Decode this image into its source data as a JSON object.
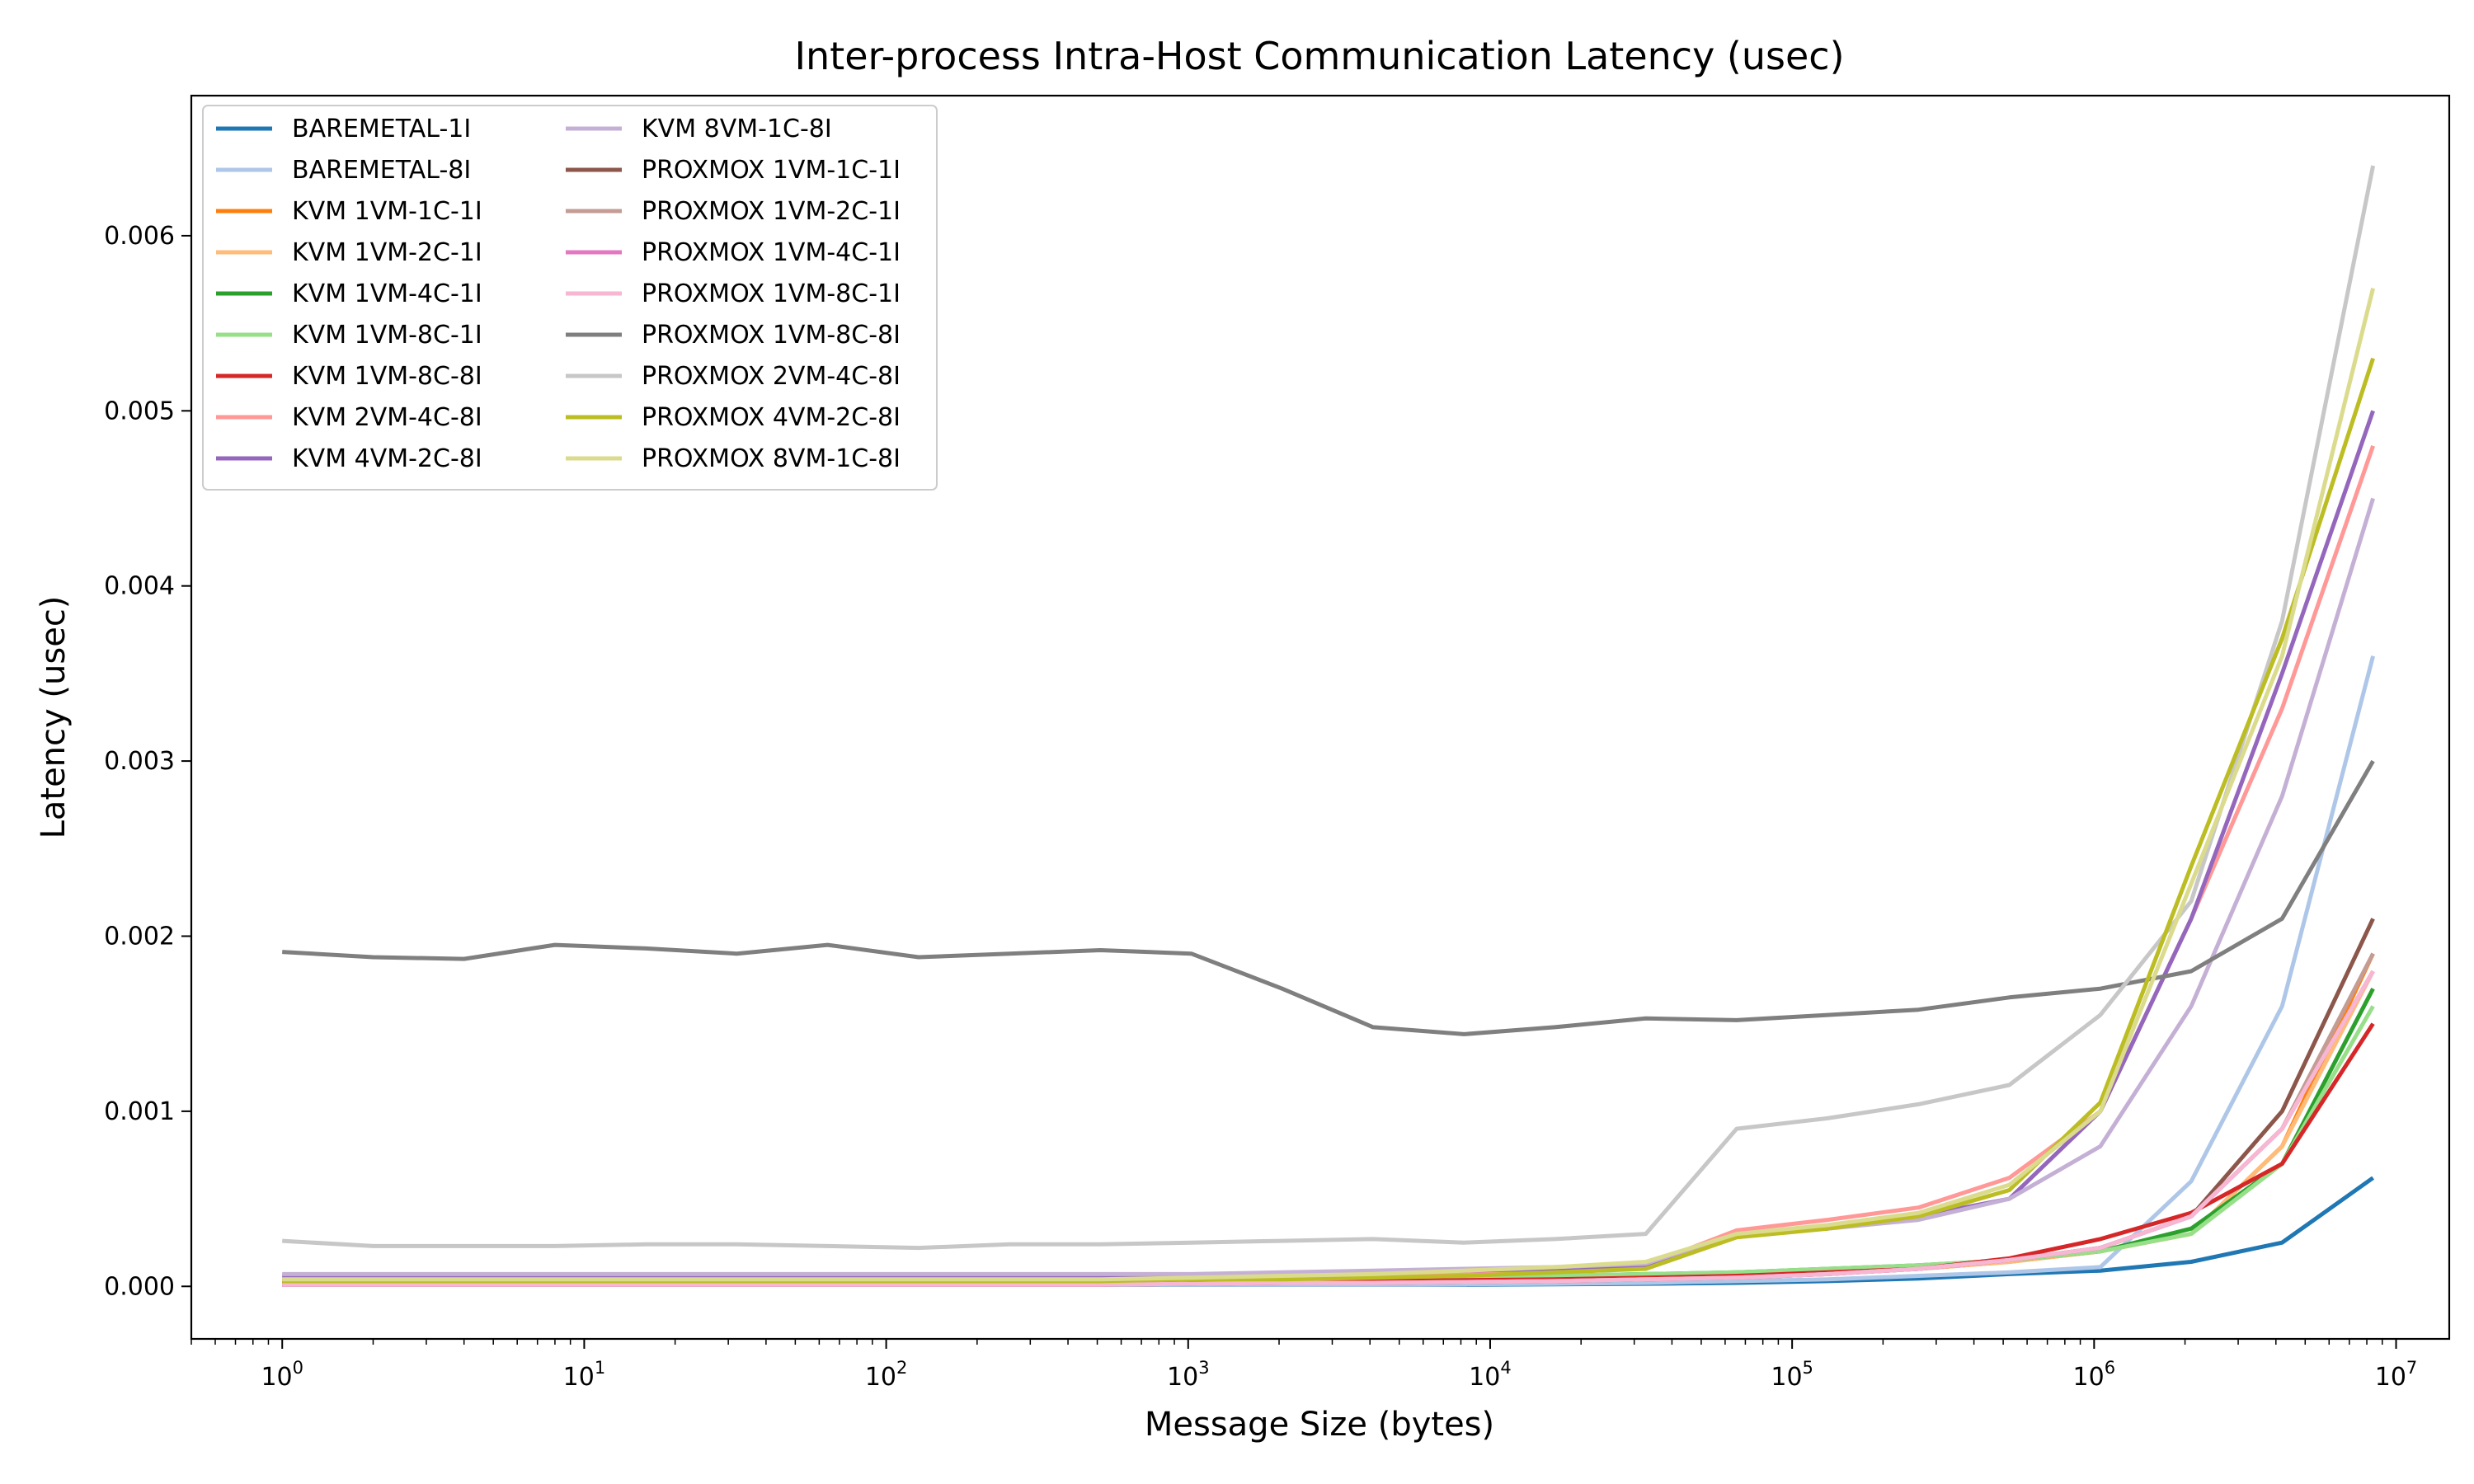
{
  "chart_data": {
    "type": "line",
    "title": "Inter-process Intra-Host Communication Latency (usec)",
    "xlabel": "Message Size (bytes)",
    "ylabel": "Latency (usec)",
    "x_scale": "log",
    "xlim": [
      0.5,
      15000000
    ],
    "ylim": [
      -0.0003,
      0.0068
    ],
    "x_ticks": [
      {
        "exp": "0",
        "value": 1
      },
      {
        "exp": "1",
        "value": 10
      },
      {
        "exp": "2",
        "value": 100
      },
      {
        "exp": "3",
        "value": 1000
      },
      {
        "exp": "4",
        "value": 10000
      },
      {
        "exp": "5",
        "value": 100000
      },
      {
        "exp": "6",
        "value": 1000000
      },
      {
        "exp": "7",
        "value": 10000000
      }
    ],
    "y_ticks": [
      {
        "label": "0.000",
        "value": 0.0
      },
      {
        "label": "0.001",
        "value": 0.001
      },
      {
        "label": "0.002",
        "value": 0.002
      },
      {
        "label": "0.003",
        "value": 0.003
      },
      {
        "label": "0.004",
        "value": 0.004
      },
      {
        "label": "0.005",
        "value": 0.005
      },
      {
        "label": "0.006",
        "value": 0.006
      }
    ],
    "x_tick_base": "10",
    "grid": false,
    "legend_position": "top-left",
    "legend_columns": 2,
    "x": [
      1,
      2,
      4,
      8,
      16,
      32,
      64,
      128,
      256,
      512,
      1024,
      2048,
      4096,
      8192,
      16384,
      32768,
      65536,
      131072,
      262144,
      524288,
      1048576,
      2097152,
      4194304,
      8388608
    ],
    "series": [
      {
        "name": "BAREMETAL-1I",
        "color": "#1f77b4",
        "values": [
          1e-05,
          1e-05,
          1e-05,
          1e-05,
          1e-05,
          1e-05,
          1e-05,
          1e-05,
          1e-05,
          1e-05,
          1e-05,
          1e-05,
          1e-05,
          1e-05,
          1.2e-05,
          1.5e-05,
          2e-05,
          3e-05,
          4.5e-05,
          7e-05,
          9e-05,
          0.00014,
          0.00025,
          0.00062
        ]
      },
      {
        "name": "BAREMETAL-8I",
        "color": "#aec7e8",
        "values": [
          1e-05,
          1e-05,
          1e-05,
          1e-05,
          1e-05,
          1e-05,
          1e-05,
          1e-05,
          1e-05,
          1e-05,
          1e-05,
          1e-05,
          1e-05,
          1.2e-05,
          1.5e-05,
          2e-05,
          3e-05,
          4e-05,
          6e-05,
          8e-05,
          0.00011,
          0.0006,
          0.0016,
          0.0036
        ]
      },
      {
        "name": "KVM 1VM-1C-1I",
        "color": "#ff7f0e",
        "values": [
          2e-05,
          2e-05,
          2e-05,
          2e-05,
          2e-05,
          2e-05,
          2e-05,
          2e-05,
          2e-05,
          2e-05,
          2.5e-05,
          3e-05,
          3e-05,
          3.5e-05,
          4e-05,
          5e-05,
          6e-05,
          8e-05,
          0.0001,
          0.00014,
          0.0002,
          0.0003,
          0.0008,
          0.0019
        ]
      },
      {
        "name": "KVM 1VM-2C-1I",
        "color": "#ffbb78",
        "values": [
          2e-05,
          2e-05,
          2e-05,
          2e-05,
          2e-05,
          2e-05,
          2e-05,
          2e-05,
          2e-05,
          2e-05,
          2.5e-05,
          3e-05,
          3e-05,
          3.5e-05,
          4e-05,
          5e-05,
          6e-05,
          8e-05,
          0.0001,
          0.00014,
          0.0002,
          0.0003,
          0.0008,
          0.0018
        ]
      },
      {
        "name": "KVM 1VM-4C-1I",
        "color": "#2ca02c",
        "values": [
          3e-05,
          3e-05,
          3e-05,
          3e-05,
          3e-05,
          3e-05,
          3e-05,
          3e-05,
          3e-05,
          3e-05,
          3.5e-05,
          4e-05,
          4e-05,
          5e-05,
          6e-05,
          7e-05,
          8e-05,
          0.0001,
          0.00012,
          0.00015,
          0.0002,
          0.00033,
          0.0007,
          0.0017
        ]
      },
      {
        "name": "KVM 1VM-8C-1I",
        "color": "#98df8a",
        "values": [
          3e-05,
          3e-05,
          3e-05,
          3e-05,
          3e-05,
          3e-05,
          3e-05,
          3e-05,
          3e-05,
          3e-05,
          3.5e-05,
          4e-05,
          4e-05,
          5e-05,
          6e-05,
          7e-05,
          8e-05,
          0.0001,
          0.00012,
          0.00015,
          0.0002,
          0.0003,
          0.0007,
          0.0016
        ]
      },
      {
        "name": "KVM 1VM-8C-8I",
        "color": "#d62728",
        "values": [
          2e-05,
          2e-05,
          2e-05,
          2e-05,
          2e-05,
          2e-05,
          2e-05,
          2e-05,
          2e-05,
          2e-05,
          2.5e-05,
          3e-05,
          3e-05,
          3.5e-05,
          4e-05,
          5e-05,
          6e-05,
          8e-05,
          0.0001,
          0.00016,
          0.00027,
          0.00042,
          0.0007,
          0.0015
        ]
      },
      {
        "name": "KVM 2VM-4C-8I",
        "color": "#ff9896",
        "values": [
          5e-05,
          5e-05,
          5e-05,
          5e-05,
          5e-05,
          5e-05,
          5e-05,
          5e-05,
          5e-05,
          5e-05,
          6e-05,
          6e-05,
          7e-05,
          8e-05,
          0.0001,
          0.00012,
          0.00032,
          0.00038,
          0.00045,
          0.00062,
          0.001,
          0.0021,
          0.0033,
          0.0048
        ]
      },
      {
        "name": "KVM 4VM-2C-8I",
        "color": "#9467bd",
        "values": [
          6e-05,
          6e-05,
          6e-05,
          6e-05,
          6e-05,
          6e-05,
          6e-05,
          6e-05,
          6e-05,
          6e-05,
          6e-05,
          7e-05,
          8e-05,
          9e-05,
          0.0001,
          0.00012,
          0.0003,
          0.00033,
          0.0004,
          0.0005,
          0.001,
          0.0021,
          0.0035,
          0.005
        ]
      },
      {
        "name": "KVM 8VM-1C-8I",
        "color": "#c5b0d5",
        "values": [
          7e-05,
          7e-05,
          7e-05,
          7e-05,
          7e-05,
          7e-05,
          7e-05,
          7e-05,
          7e-05,
          7e-05,
          7e-05,
          8e-05,
          9e-05,
          0.0001,
          0.00011,
          0.00013,
          0.0003,
          0.00033,
          0.00038,
          0.0005,
          0.0008,
          0.0016,
          0.0028,
          0.0045
        ]
      },
      {
        "name": "PROXMOX 1VM-1C-1I",
        "color": "#8c564b",
        "values": [
          1e-05,
          1e-05,
          1e-05,
          1e-05,
          1e-05,
          1e-05,
          1e-05,
          1e-05,
          1e-05,
          1e-05,
          1.5e-05,
          2e-05,
          2e-05,
          2.5e-05,
          3e-05,
          4e-05,
          5e-05,
          7e-05,
          0.0001,
          0.00015,
          0.00022,
          0.0004,
          0.001,
          0.0021
        ]
      },
      {
        "name": "PROXMOX 1VM-2C-1I",
        "color": "#c49c94",
        "values": [
          1e-05,
          1e-05,
          1e-05,
          1e-05,
          1e-05,
          1e-05,
          1e-05,
          1e-05,
          1e-05,
          1e-05,
          1.5e-05,
          2e-05,
          2e-05,
          2.5e-05,
          3e-05,
          4e-05,
          5e-05,
          7e-05,
          0.0001,
          0.00015,
          0.00022,
          0.0004,
          0.0009,
          0.0019
        ]
      },
      {
        "name": "PROXMOX 1VM-4C-1I",
        "color": "#e377c2",
        "values": [
          1e-05,
          1e-05,
          1e-05,
          1e-05,
          1e-05,
          1e-05,
          1e-05,
          1e-05,
          1e-05,
          1e-05,
          1.5e-05,
          2e-05,
          2e-05,
          2.5e-05,
          3e-05,
          4e-05,
          5e-05,
          7e-05,
          0.0001,
          0.00015,
          0.00022,
          0.0004,
          0.0009,
          0.0018
        ]
      },
      {
        "name": "PROXMOX 1VM-8C-1I",
        "color": "#f7b6d2",
        "values": [
          1e-05,
          1e-05,
          1e-05,
          1e-05,
          1e-05,
          1e-05,
          1e-05,
          1e-05,
          1e-05,
          1e-05,
          1.5e-05,
          2e-05,
          2e-05,
          2.5e-05,
          3e-05,
          4e-05,
          5e-05,
          7e-05,
          0.0001,
          0.00015,
          0.00022,
          0.0004,
          0.0009,
          0.0018
        ]
      },
      {
        "name": "PROXMOX 1VM-8C-8I",
        "color": "#7f7f7f",
        "values": [
          0.00191,
          0.00188,
          0.00187,
          0.00195,
          0.00193,
          0.0019,
          0.00195,
          0.00188,
          0.0019,
          0.00192,
          0.0019,
          0.0017,
          0.00148,
          0.00144,
          0.00148,
          0.00153,
          0.00152,
          0.00155,
          0.00158,
          0.00165,
          0.0017,
          0.0018,
          0.0021,
          0.003
        ]
      },
      {
        "name": "PROXMOX 2VM-4C-8I",
        "color": "#c7c7c7",
        "values": [
          0.00026,
          0.00023,
          0.00023,
          0.00023,
          0.00024,
          0.00024,
          0.00023,
          0.00022,
          0.00024,
          0.00024,
          0.00025,
          0.00026,
          0.00027,
          0.00025,
          0.00027,
          0.0003,
          0.0009,
          0.00096,
          0.00104,
          0.00115,
          0.00155,
          0.0022,
          0.0038,
          0.0064
        ]
      },
      {
        "name": "PROXMOX 4VM-2C-8I",
        "color": "#bcbd22",
        "values": [
          3e-05,
          3e-05,
          3e-05,
          3e-05,
          3e-05,
          3e-05,
          3e-05,
          3e-05,
          3e-05,
          3e-05,
          4e-05,
          4e-05,
          5e-05,
          6e-05,
          8e-05,
          0.0001,
          0.00028,
          0.00033,
          0.0004,
          0.00055,
          0.00105,
          0.0024,
          0.0037,
          0.0053
        ]
      },
      {
        "name": "PROXMOX 8VM-1C-8I",
        "color": "#dbdb8d",
        "values": [
          4e-05,
          4e-05,
          4e-05,
          4e-05,
          4e-05,
          4e-05,
          4e-05,
          4e-05,
          4e-05,
          4e-05,
          5e-05,
          6e-05,
          7e-05,
          9e-05,
          0.00011,
          0.00014,
          0.0003,
          0.00035,
          0.00042,
          0.00058,
          0.001,
          0.0023,
          0.0036,
          0.0057
        ]
      }
    ]
  }
}
